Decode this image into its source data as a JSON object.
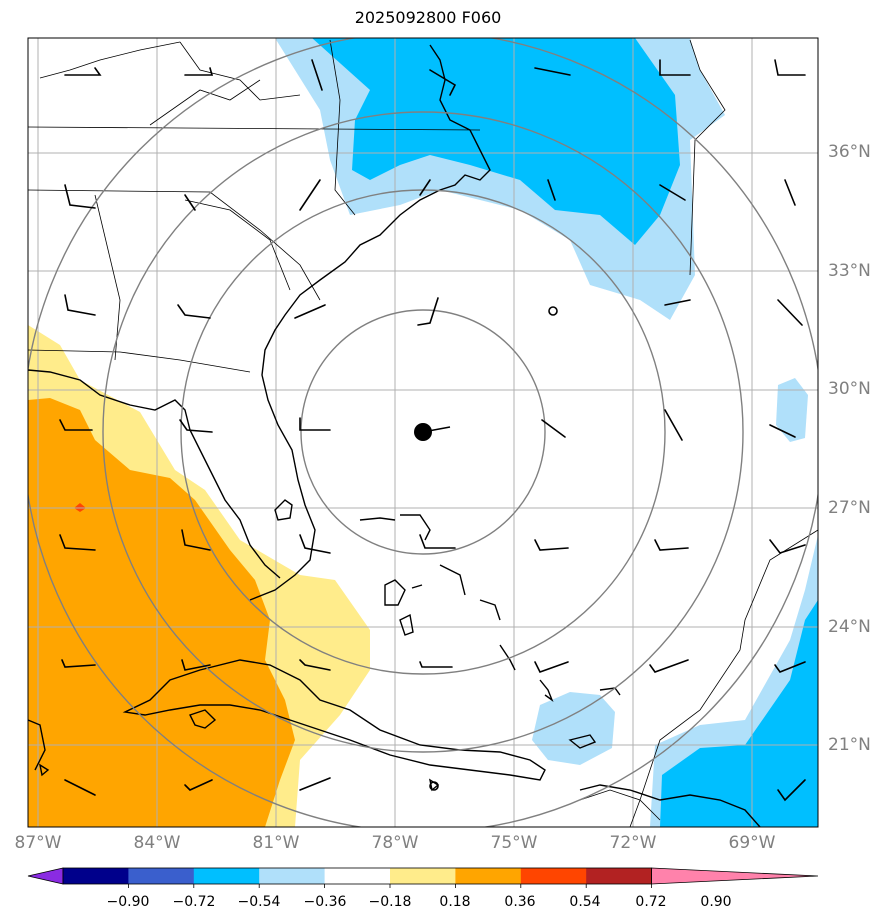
{
  "title": "2025092800 F060",
  "lat_labels": [
    "36°N",
    "33°N",
    "30°N",
    "27°N",
    "24°N",
    "21°N"
  ],
  "lon_labels": [
    "87°W",
    "84°W",
    "81°W",
    "78°W",
    "75°W",
    "72°W",
    "69°W"
  ],
  "colorbar": {
    "labels": [
      "−0.90",
      "−0.72",
      "−0.54",
      "−0.36",
      "−0.18",
      "0.18",
      "0.36",
      "0.54",
      "0.72",
      "0.90"
    ],
    "colors": [
      "#8a2be2",
      "#00008b",
      "#3a5fcd",
      "#00bfff",
      "#b0e0fa",
      "#ffffff",
      "#ffec8b",
      "#ffa500",
      "#ff4500",
      "#b22222",
      "#ff82ab"
    ]
  },
  "fill_colors": {
    "neg_light": "#b0e0fa",
    "neg_mid": "#00bfff",
    "pos_light": "#ffec8b",
    "pos_mid": "#ffa500",
    "pos_strong": "#ff4500"
  },
  "storm_center": {
    "lon": -77.3,
    "lat": 28.9
  },
  "range_rings": "concentric"
}
